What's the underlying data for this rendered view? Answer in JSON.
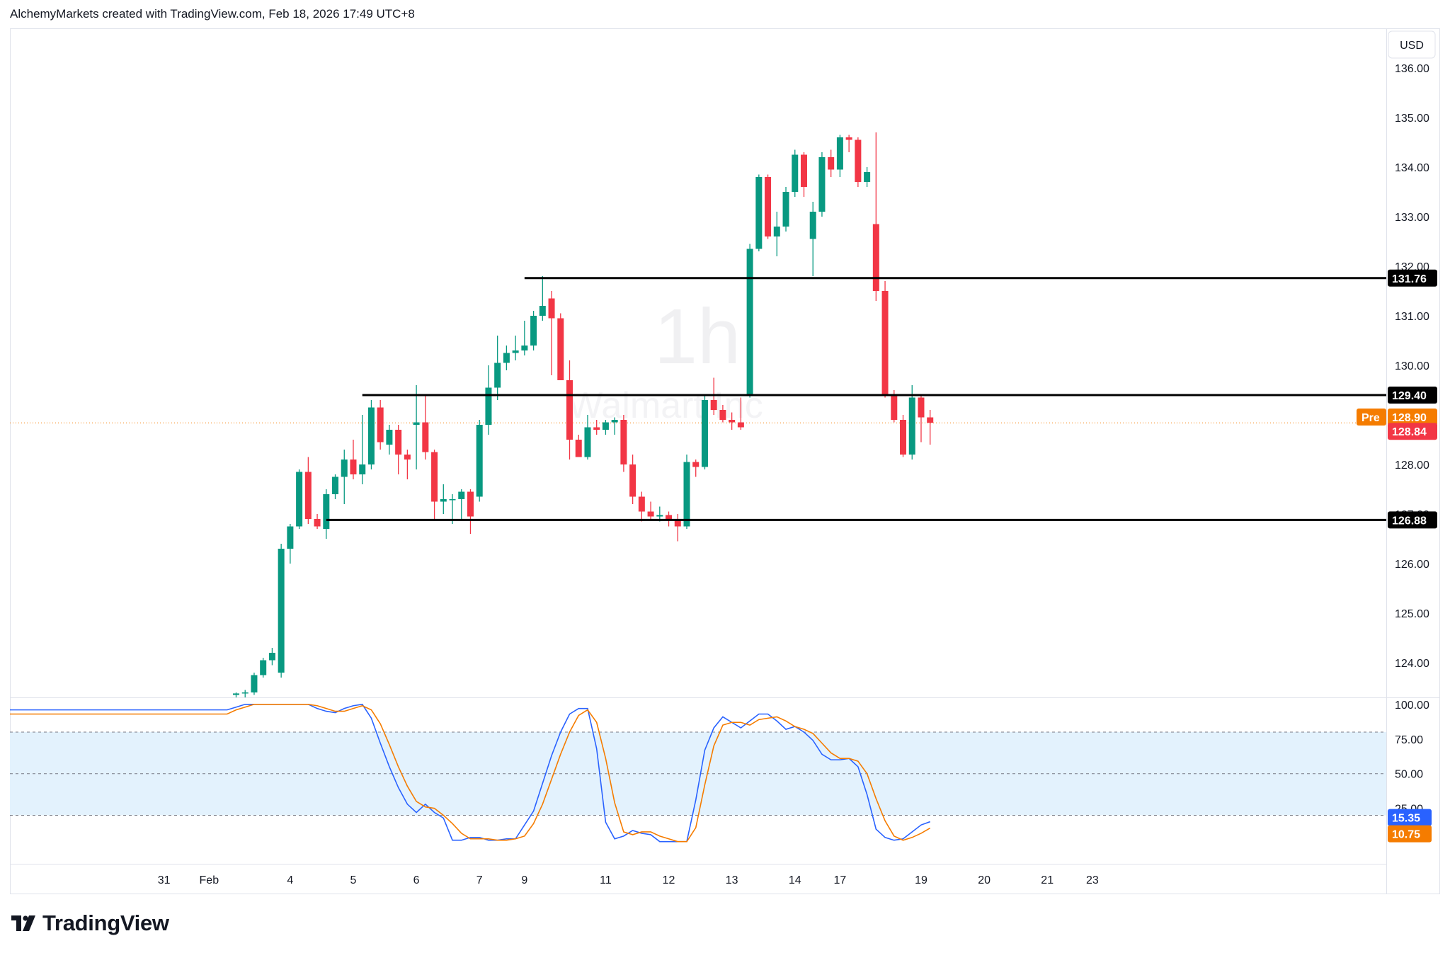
{
  "header": {
    "text": "AlchemyMarkets created with TradingView.com, Feb 18, 2026 17:49 UTC+8"
  },
  "watermark": {
    "interval": "1h",
    "symbol": "Walmart Inc"
  },
  "footer": {
    "brand": "TradingView"
  },
  "colors": {
    "up": "#089981",
    "down": "#f23645",
    "stoch_k": "#2962ff",
    "stoch_d": "#f57c00",
    "band_fill": "#e3f2fd",
    "price_line": "#f57c00",
    "level_line": "#000000",
    "pre_tag": "#f57c00",
    "last_tag": "#f23645",
    "k_tag": "#2962ff",
    "d_tag": "#f57c00"
  },
  "chart_data": [
    {
      "type": "candlestick",
      "currency": "USD",
      "interval": "1h",
      "ylim": [
        123.3,
        136.8
      ],
      "y_ticks": [
        "124.00",
        "125.00",
        "126.00",
        "127.00",
        "128.00",
        "129.00",
        "130.00",
        "131.00",
        "132.00",
        "133.00",
        "134.00",
        "135.00",
        "136.00"
      ],
      "x_ticks": [
        {
          "label": "31",
          "i": -8
        },
        {
          "label": "Feb",
          "i": -3
        },
        {
          "label": "4",
          "i": 6
        },
        {
          "label": "5",
          "i": 13
        },
        {
          "label": "6",
          "i": 20
        },
        {
          "label": "7",
          "i": 27
        },
        {
          "label": "9",
          "i": 32
        },
        {
          "label": "11",
          "i": 41
        },
        {
          "label": "12",
          "i": 48
        },
        {
          "label": "13",
          "i": 55
        },
        {
          "label": "14",
          "i": 62
        },
        {
          "label": "17",
          "i": 67
        },
        {
          "label": "19",
          "i": 76
        },
        {
          "label": "20",
          "i": 83
        },
        {
          "label": "21",
          "i": 90
        },
        {
          "label": "23",
          "i": 95
        }
      ],
      "candles": [
        [
          123.35,
          123.4,
          123.3,
          123.38
        ],
        [
          123.38,
          123.45,
          123.3,
          123.4
        ],
        [
          123.4,
          123.8,
          123.35,
          123.75
        ],
        [
          123.75,
          124.1,
          123.7,
          124.05
        ],
        [
          124.05,
          124.3,
          123.95,
          124.2
        ],
        [
          123.8,
          126.4,
          123.7,
          126.3
        ],
        [
          126.3,
          126.8,
          126.0,
          126.75
        ],
        [
          126.75,
          127.9,
          126.7,
          127.85
        ],
        [
          127.85,
          128.15,
          126.8,
          126.9
        ],
        [
          126.9,
          127.0,
          126.7,
          126.75
        ],
        [
          126.7,
          127.5,
          126.5,
          127.4
        ],
        [
          127.4,
          127.8,
          127.3,
          127.75
        ],
        [
          127.75,
          128.3,
          127.2,
          128.1
        ],
        [
          128.1,
          128.5,
          127.7,
          127.8
        ],
        [
          127.8,
          129.0,
          127.6,
          128.0
        ],
        [
          128.0,
          129.3,
          127.9,
          129.15
        ],
        [
          129.15,
          129.3,
          128.3,
          128.45
        ],
        [
          128.4,
          128.8,
          128.2,
          128.7
        ],
        [
          128.7,
          128.8,
          127.8,
          128.2
        ],
        [
          128.2,
          128.3,
          127.7,
          128.1
        ],
        [
          128.8,
          129.6,
          127.9,
          128.85
        ],
        [
          128.85,
          129.4,
          128.1,
          128.25
        ],
        [
          128.25,
          128.3,
          126.9,
          127.25
        ],
        [
          127.25,
          127.6,
          127.0,
          127.3
        ],
        [
          127.3,
          127.4,
          126.8,
          127.3
        ],
        [
          127.3,
          127.5,
          126.9,
          127.45
        ],
        [
          127.45,
          127.5,
          126.6,
          126.95
        ],
        [
          127.35,
          128.9,
          127.25,
          128.8
        ],
        [
          128.8,
          130.0,
          128.6,
          129.55
        ],
        [
          129.55,
          130.6,
          129.3,
          130.05
        ],
        [
          130.05,
          130.4,
          129.9,
          130.25
        ],
        [
          130.25,
          130.6,
          130.1,
          130.3
        ],
        [
          130.3,
          130.9,
          130.2,
          130.4
        ],
        [
          130.4,
          131.1,
          130.3,
          131.0
        ],
        [
          131.0,
          131.8,
          130.9,
          131.2
        ],
        [
          131.35,
          131.5,
          129.8,
          130.95
        ],
        [
          130.95,
          131.05,
          129.7,
          129.7
        ],
        [
          129.7,
          130.1,
          128.1,
          128.5
        ],
        [
          128.5,
          128.6,
          128.15,
          128.15
        ],
        [
          128.15,
          129.0,
          128.1,
          128.75
        ],
        [
          128.75,
          128.9,
          128.6,
          128.7
        ],
        [
          128.7,
          128.9,
          128.6,
          128.85
        ],
        [
          128.85,
          128.95,
          128.6,
          128.9
        ],
        [
          128.9,
          129.0,
          127.85,
          128.0
        ],
        [
          128.0,
          128.2,
          127.2,
          127.35
        ],
        [
          127.35,
          127.45,
          126.85,
          127.05
        ],
        [
          127.05,
          127.25,
          126.9,
          126.95
        ],
        [
          126.95,
          127.15,
          126.85,
          126.98
        ],
        [
          126.98,
          127.05,
          126.75,
          126.9
        ],
        [
          126.9,
          127.0,
          126.45,
          126.75
        ],
        [
          126.75,
          128.2,
          126.7,
          128.05
        ],
        [
          128.05,
          128.1,
          127.75,
          127.95
        ],
        [
          127.95,
          129.4,
          127.9,
          129.3
        ],
        [
          129.3,
          129.75,
          129.0,
          129.1
        ],
        [
          129.1,
          129.2,
          128.85,
          128.9
        ],
        [
          128.9,
          129.05,
          128.7,
          128.85
        ],
        [
          128.85,
          129.35,
          128.7,
          128.75
        ],
        [
          129.4,
          132.45,
          129.35,
          132.35
        ],
        [
          132.35,
          133.85,
          132.3,
          133.8
        ],
        [
          133.8,
          133.85,
          132.55,
          132.6
        ],
        [
          132.6,
          133.1,
          132.2,
          132.8
        ],
        [
          132.8,
          133.6,
          132.7,
          133.5
        ],
        [
          133.5,
          134.35,
          133.4,
          134.25
        ],
        [
          134.25,
          134.3,
          133.4,
          133.6
        ],
        [
          132.55,
          133.3,
          131.8,
          133.1
        ],
        [
          133.1,
          134.3,
          133.0,
          134.2
        ],
        [
          134.2,
          134.35,
          133.8,
          133.95
        ],
        [
          133.95,
          134.65,
          133.8,
          134.6
        ],
        [
          134.6,
          134.65,
          134.3,
          134.55
        ],
        [
          134.55,
          134.6,
          133.6,
          133.7
        ],
        [
          133.7,
          134.0,
          133.6,
          133.9
        ],
        [
          132.85,
          134.7,
          131.3,
          131.5
        ],
        [
          131.5,
          131.7,
          129.35,
          129.4
        ],
        [
          129.4,
          129.5,
          128.85,
          128.9
        ],
        [
          128.9,
          129.0,
          128.15,
          128.2
        ],
        [
          128.2,
          129.6,
          128.1,
          129.35
        ],
        [
          129.35,
          129.4,
          128.45,
          128.95
        ],
        [
          128.95,
          129.1,
          128.4,
          128.84
        ]
      ],
      "levels": [
        {
          "price": 131.76,
          "label": "131.76",
          "from_i": 32
        },
        {
          "price": 129.4,
          "label": "129.40",
          "from_i": 14
        },
        {
          "price": 126.88,
          "label": "126.88",
          "from_i": 10
        }
      ],
      "pre_price": {
        "price": 128.9,
        "label": "128.90",
        "tag": "Pre"
      },
      "last_price": {
        "price": 128.84,
        "label": "128.84"
      }
    },
    {
      "type": "line",
      "indicator": "stochastic",
      "ylim": [
        -15,
        105
      ],
      "y_ticks": [
        "25.00",
        "50.00",
        "75.00",
        "100.00"
      ],
      "bands": [
        20,
        80
      ],
      "series": [
        {
          "values": [
            96,
            98,
            100,
            100,
            100,
            100,
            100,
            100,
            100,
            100,
            97,
            95,
            94,
            97,
            99,
            100,
            90,
            72,
            55,
            40,
            28,
            22,
            28,
            22,
            18,
            2,
            2,
            4,
            4,
            2,
            2,
            3,
            3,
            13,
            23,
            43,
            63,
            80,
            93,
            97,
            97,
            68,
            15,
            3,
            5,
            9,
            7,
            6,
            1,
            1,
            1,
            1,
            31,
            67,
            83,
            91,
            87,
            83,
            88,
            93,
            93,
            88,
            82,
            84,
            80,
            74,
            64,
            60,
            60,
            61,
            55,
            35,
            10,
            4,
            2,
            3,
            8,
            13,
            15.35
          ],
          "label": "15.35"
        },
        {
          "values": [
            93,
            96,
            98,
            100,
            100,
            100,
            100,
            100,
            100,
            100,
            99,
            97,
            95,
            95,
            97,
            99,
            96,
            86,
            71,
            55,
            41,
            30,
            26,
            25,
            20,
            14,
            7,
            3,
            3,
            3,
            2,
            2,
            3,
            5,
            14,
            28,
            46,
            64,
            80,
            92,
            96,
            87,
            61,
            29,
            8,
            6,
            8,
            8,
            5,
            3,
            1,
            1,
            11,
            42,
            70,
            85,
            87,
            87,
            85,
            89,
            90,
            91,
            88,
            84,
            82,
            79,
            72,
            65,
            61,
            61,
            59,
            50,
            32,
            16,
            5,
            2,
            4,
            7,
            10.75
          ],
          "label": "10.75"
        }
      ]
    }
  ]
}
